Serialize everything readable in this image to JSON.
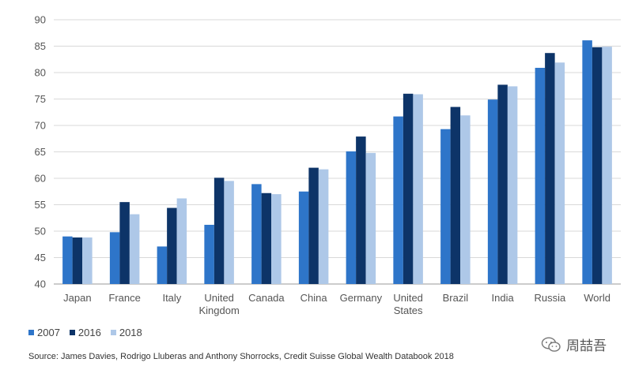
{
  "chart_data": {
    "type": "bar",
    "categories": [
      "Japan",
      "France",
      "Italy",
      "United Kingdom",
      "Canada",
      "China",
      "Germany",
      "United States",
      "Brazil",
      "India",
      "Russia",
      "World"
    ],
    "category_lines": [
      [
        "Japan"
      ],
      [
        "France"
      ],
      [
        "Italy"
      ],
      [
        "United",
        "Kingdom"
      ],
      [
        "Canada"
      ],
      [
        "China"
      ],
      [
        "Germany"
      ],
      [
        "United",
        "States"
      ],
      [
        "Brazil"
      ],
      [
        "India"
      ],
      [
        "Russia"
      ],
      [
        "World"
      ]
    ],
    "series": [
      {
        "name": "2007",
        "color": "#2E75C9",
        "values": [
          49.0,
          49.8,
          47.1,
          51.2,
          58.9,
          57.5,
          65.1,
          71.7,
          69.3,
          74.9,
          80.9,
          86.1
        ]
      },
      {
        "name": "2016",
        "color": "#0D3468",
        "values": [
          48.8,
          55.5,
          54.4,
          60.1,
          57.2,
          62.0,
          67.9,
          76.0,
          73.5,
          77.7,
          83.7,
          84.8
        ]
      },
      {
        "name": "2018",
        "color": "#AEC8E8",
        "values": [
          48.8,
          53.2,
          56.2,
          59.5,
          57.0,
          61.7,
          64.8,
          75.9,
          71.9,
          77.4,
          81.9,
          84.9
        ]
      }
    ],
    "ylim": [
      40,
      90
    ],
    "yticks": [
      40,
      45,
      50,
      55,
      60,
      65,
      70,
      75,
      80,
      85,
      90
    ],
    "grid": true,
    "legend_position": "bottom-left",
    "title": "",
    "xlabel": "",
    "ylabel": ""
  },
  "source": "Source: James Davies, Rodrigo Lluberas and Anthony Shorrocks, Credit Suisse Global Wealth Databook 2018",
  "watermark": {
    "text": "周喆吾",
    "icon": "wechat-icon"
  }
}
